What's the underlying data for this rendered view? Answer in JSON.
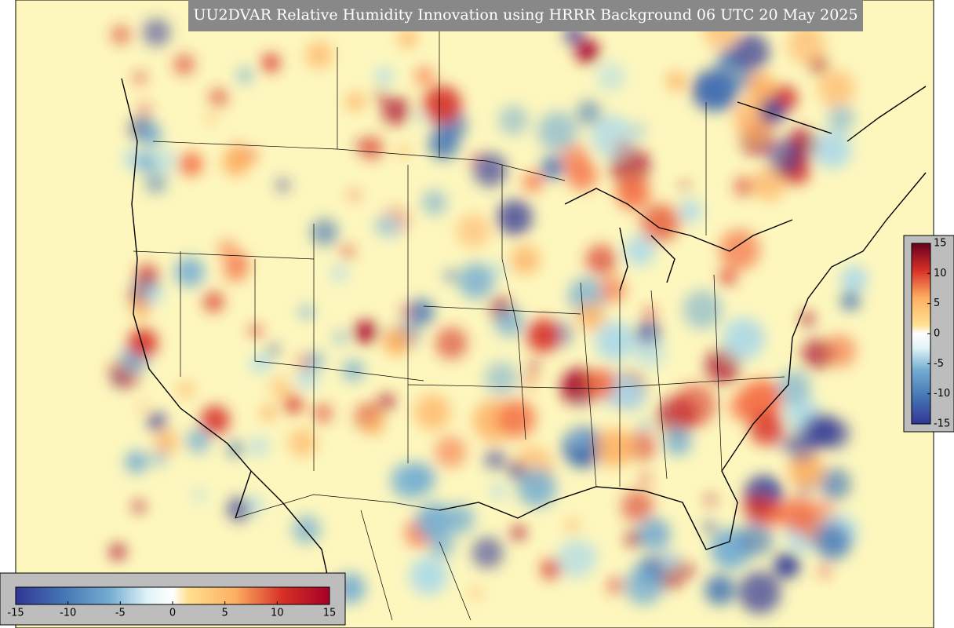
{
  "title": "UU2DVAR Relative Humidity Innovation using HRRR Background 06 UTC 20 May 2025",
  "colorbar": {
    "limits": [
      -15,
      15
    ],
    "ticks": [
      -15,
      -10,
      -5,
      0,
      5,
      10,
      15
    ]
  }
}
